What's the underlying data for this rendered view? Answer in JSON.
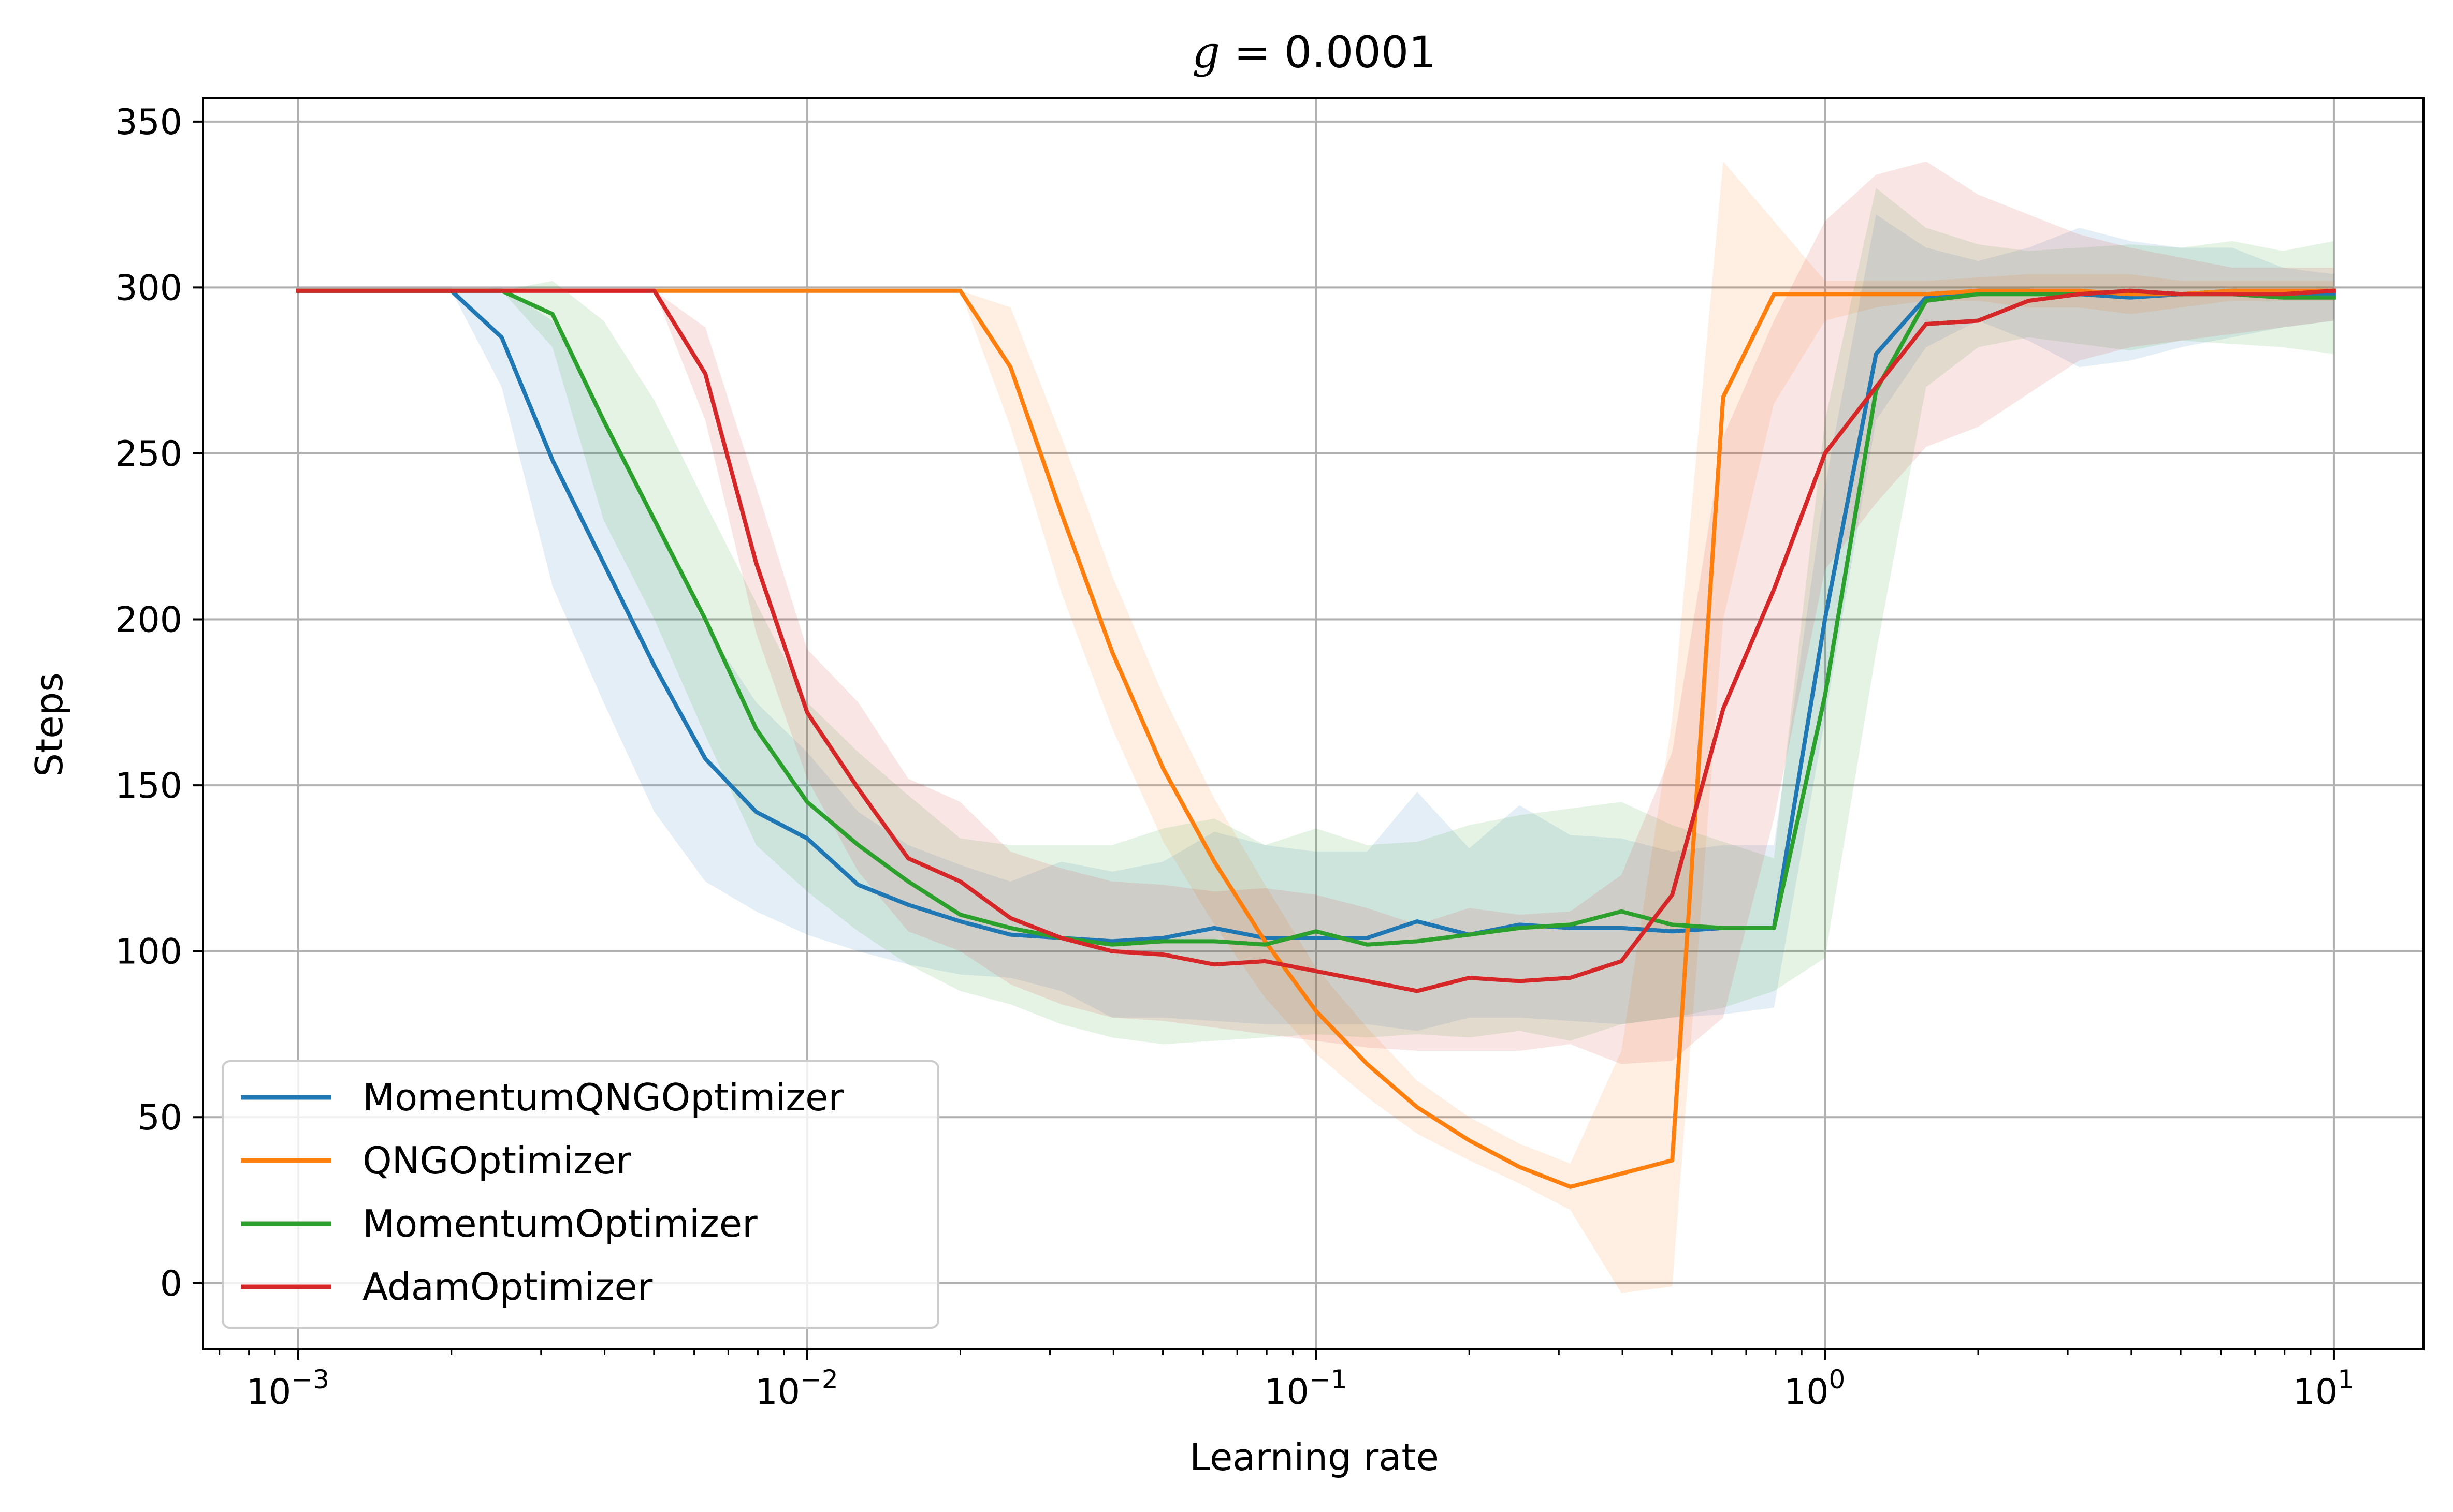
{
  "chart_data": {
    "type": "line",
    "title_var": "g",
    "title_rest": " = 0.0001",
    "xlabel": "Learning rate",
    "ylabel": "Steps",
    "xscale": "log",
    "xlim": [
      0.00065,
      15
    ],
    "ylim": [
      -20,
      357
    ],
    "grid": true,
    "legend_position": "lower-left",
    "x_ticks": [
      {
        "value": 0.001,
        "base": "10",
        "exp": "−3"
      },
      {
        "value": 0.01,
        "base": "10",
        "exp": "−2"
      },
      {
        "value": 0.1,
        "base": "10",
        "exp": "−1"
      },
      {
        "value": 1,
        "base": "10",
        "exp": "0"
      },
      {
        "value": 10,
        "base": "10",
        "exp": "1"
      }
    ],
    "y_ticks": [
      "0",
      "50",
      "100",
      "150",
      "200",
      "250",
      "300",
      "350"
    ],
    "x": [
      0.001,
      0.00126,
      0.00158,
      0.002,
      0.00251,
      0.00316,
      0.00398,
      0.00501,
      0.00631,
      0.00794,
      0.01,
      0.0126,
      0.0158,
      0.02,
      0.0251,
      0.0316,
      0.0398,
      0.0501,
      0.0631,
      0.0794,
      0.1,
      0.126,
      0.158,
      0.2,
      0.251,
      0.316,
      0.398,
      0.501,
      0.631,
      0.794,
      1.0,
      1.26,
      1.58,
      2.0,
      2.51,
      3.16,
      3.98,
      5.01,
      6.31,
      7.94,
      10.0
    ],
    "series": [
      {
        "name": "MomentumQNGOptimizer",
        "color": "#1f77b4",
        "values": [
          299,
          299,
          299,
          299,
          285,
          248,
          217,
          186,
          158,
          142,
          134,
          120,
          114,
          109,
          105,
          104,
          103,
          104,
          107,
          104,
          104,
          104,
          109,
          105,
          108,
          107,
          107,
          106,
          107,
          107,
          200,
          280,
          297,
          299,
          299,
          298,
          297,
          298,
          299,
          298,
          298
        ],
        "lower": [
          299,
          299,
          299,
          299,
          270,
          210,
          175,
          142,
          121,
          112,
          105,
          100,
          96,
          93,
          92,
          88,
          80,
          80,
          79,
          78,
          78,
          78,
          76,
          80,
          80,
          79,
          78,
          80,
          81,
          83,
          170,
          260,
          282,
          290,
          284,
          276,
          278,
          282,
          285,
          288,
          290
        ],
        "upper": [
          299,
          299,
          299,
          299,
          300,
          290,
          260,
          230,
          198,
          175,
          160,
          142,
          132,
          126,
          121,
          127,
          124,
          127,
          136,
          132,
          130,
          130,
          148,
          131,
          144,
          135,
          134,
          130,
          132,
          132,
          240,
          322,
          312,
          308,
          312,
          318,
          314,
          312,
          312,
          306,
          304
        ]
      },
      {
        "name": "QNGOptimizer",
        "color": "#ff7f0e",
        "values": [
          299,
          299,
          299,
          299,
          299,
          299,
          299,
          299,
          299,
          299,
          299,
          299,
          299,
          299,
          276,
          232,
          190,
          155,
          127,
          103,
          82,
          66,
          53,
          43,
          35,
          29,
          33,
          37,
          267,
          298,
          298,
          298,
          298,
          299,
          299,
          299,
          298,
          298,
          299,
          299,
          299
        ],
        "lower": [
          299,
          299,
          299,
          299,
          299,
          299,
          299,
          299,
          299,
          299,
          299,
          299,
          299,
          299,
          258,
          208,
          167,
          133,
          108,
          86,
          69,
          56,
          45,
          37,
          30,
          22,
          -3,
          -1,
          200,
          265,
          290,
          294,
          296,
          296,
          294,
          294,
          292,
          294,
          296,
          296,
          296
        ],
        "upper": [
          299,
          299,
          299,
          299,
          299,
          299,
          299,
          299,
          299,
          299,
          299,
          299,
          299,
          299,
          294,
          255,
          213,
          177,
          146,
          120,
          95,
          77,
          61,
          50,
          42,
          36,
          70,
          170,
          338,
          320,
          302,
          302,
          302,
          303,
          304,
          304,
          304,
          302,
          302,
          302,
          302
        ]
      },
      {
        "name": "MomentumOptimizer",
        "color": "#2ca02c",
        "values": [
          299,
          299,
          299,
          299,
          299,
          292,
          260,
          230,
          200,
          167,
          145,
          132,
          121,
          111,
          107,
          104,
          102,
          103,
          103,
          102,
          106,
          102,
          103,
          105,
          107,
          108,
          112,
          108,
          107,
          107,
          177,
          269,
          296,
          298,
          298,
          298,
          299,
          298,
          298,
          297,
          297
        ],
        "lower": [
          299,
          299,
          299,
          299,
          299,
          282,
          230,
          200,
          165,
          132,
          118,
          106,
          96,
          88,
          84,
          78,
          74,
          72,
          73,
          74,
          75,
          74,
          75,
          74,
          76,
          73,
          78,
          80,
          83,
          88,
          98,
          190,
          270,
          282,
          285,
          283,
          281,
          284,
          283,
          282,
          280
        ],
        "upper": [
          299,
          299,
          299,
          299,
          299,
          302,
          290,
          266,
          235,
          205,
          175,
          160,
          147,
          134,
          132,
          132,
          132,
          137,
          140,
          132,
          137,
          132,
          133,
          138,
          141,
          143,
          145,
          138,
          133,
          128,
          260,
          330,
          318,
          313,
          311,
          312,
          313,
          312,
          314,
          311,
          314
        ]
      },
      {
        "name": "AdamOptimizer",
        "color": "#d62728",
        "values": [
          299,
          299,
          299,
          299,
          299,
          299,
          299,
          299,
          274,
          217,
          172,
          149,
          128,
          121,
          110,
          104,
          100,
          99,
          96,
          97,
          94,
          91,
          88,
          92,
          91,
          92,
          97,
          117,
          173,
          209,
          250,
          270,
          289,
          290,
          296,
          298,
          299,
          298,
          298,
          298,
          299
        ],
        "lower": [
          299,
          299,
          299,
          299,
          299,
          299,
          299,
          299,
          260,
          196,
          152,
          124,
          106,
          100,
          90,
          84,
          80,
          79,
          77,
          75,
          73,
          71,
          70,
          70,
          70,
          72,
          66,
          67,
          80,
          140,
          215,
          235,
          252,
          258,
          268,
          278,
          282,
          284,
          286,
          288,
          290
        ],
        "upper": [
          299,
          299,
          299,
          299,
          299,
          299,
          299,
          299,
          288,
          240,
          191,
          175,
          152,
          145,
          130,
          125,
          121,
          120,
          118,
          119,
          117,
          113,
          108,
          113,
          111,
          112,
          123,
          160,
          255,
          290,
          320,
          334,
          338,
          328,
          322,
          316,
          312,
          309,
          306,
          306,
          306
        ]
      }
    ]
  }
}
